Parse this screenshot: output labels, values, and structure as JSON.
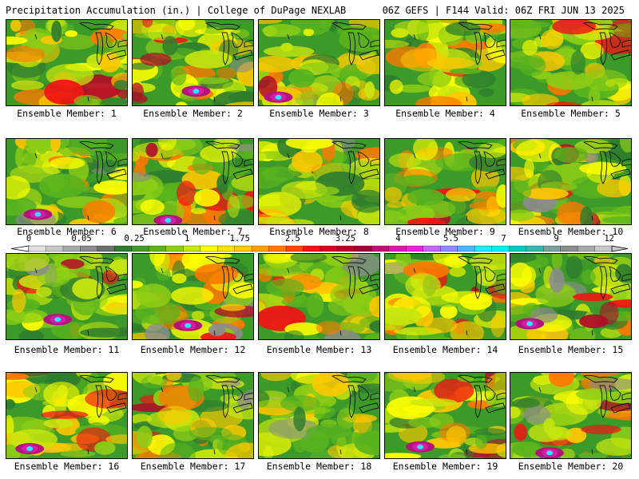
{
  "header": {
    "left_title": "Precipitation Accumulation (in.) | College of DuPage NEXLAB",
    "right_title": "06Z GEFS | F144 Valid: 06Z FRI JUN 13 2025"
  },
  "members": [
    "Ensemble Member: 1",
    "Ensemble Member: 2",
    "Ensemble Member: 3",
    "Ensemble Member: 4",
    "Ensemble Member: 5",
    "Ensemble Member: 6",
    "Ensemble Member: 7",
    "Ensemble Member: 8",
    "Ensemble Member: 9",
    "Ensemble Member: 10",
    "Ensemble Member: 11",
    "Ensemble Member: 12",
    "Ensemble Member: 13",
    "Ensemble Member: 14",
    "Ensemble Member: 15",
    "Ensemble Member: 16",
    "Ensemble Member: 17",
    "Ensemble Member: 18",
    "Ensemble Member: 19",
    "Ensemble Member: 20"
  ],
  "colorbar": {
    "labels": [
      "0",
      "0.05",
      "0.25",
      "1",
      "1.75",
      "2.5",
      "3.25",
      "4",
      "5.5",
      "7",
      "9",
      "12"
    ],
    "colors": [
      "#e0e0e0",
      "#c8c8c8",
      "#a8a8a8",
      "#8c8c8c",
      "#6e6e6e",
      "#2e7d2e",
      "#3c9a28",
      "#5ab41e",
      "#8ccd16",
      "#c8e60f",
      "#ffff00",
      "#ffe100",
      "#ffc800",
      "#ffa000",
      "#ff7800",
      "#ff4600",
      "#f01414",
      "#d20a1e",
      "#b40a28",
      "#9a0a3c",
      "#b4147a",
      "#d21eaa",
      "#e628d2",
      "#c864f0",
      "#8c8cff",
      "#50b4ff",
      "#28e6ff",
      "#00f0f0",
      "#00c8c8",
      "#3cb4b4",
      "#78a0a0",
      "#8c8c8c",
      "#a8a8a8",
      "#c8c8c8"
    ]
  }
}
